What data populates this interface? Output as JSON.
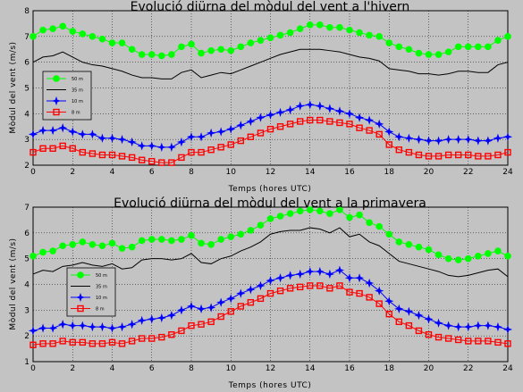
{
  "chart_data": [
    {
      "type": "line",
      "title": "Evolució diürna del mòdul del vent a l'hivern",
      "xlabel": "Temps (hores UTC)",
      "ylabel": "Mòdul del vent (m/s)",
      "xlim": [
        0,
        24
      ],
      "ylim": [
        2,
        8
      ],
      "xticks": [
        0,
        2,
        4,
        6,
        8,
        10,
        12,
        14,
        16,
        18,
        20,
        22,
        24
      ],
      "yticks": [
        2,
        3,
        4,
        5,
        6,
        7,
        8
      ],
      "grid": true,
      "legend": "left",
      "x": [
        0,
        0.5,
        1,
        1.5,
        2,
        2.5,
        3,
        3.5,
        4,
        4.5,
        5,
        5.5,
        6,
        6.5,
        7,
        7.5,
        8,
        8.5,
        9,
        9.5,
        10,
        10.5,
        11,
        11.5,
        12,
        12.5,
        13,
        13.5,
        14,
        14.5,
        15,
        15.5,
        16,
        16.5,
        17,
        17.5,
        18,
        18.5,
        19,
        19.5,
        20,
        20.5,
        21,
        21.5,
        22,
        22.5,
        23,
        23.5,
        24
      ],
      "series": [
        {
          "name": "50 m",
          "color": "#00ff00",
          "marker": "circle",
          "values": [
            7.0,
            7.25,
            7.3,
            7.4,
            7.2,
            7.1,
            7.0,
            6.9,
            6.75,
            6.75,
            6.5,
            6.3,
            6.3,
            6.25,
            6.3,
            6.6,
            6.7,
            6.35,
            6.45,
            6.5,
            6.45,
            6.6,
            6.75,
            6.85,
            6.95,
            7.05,
            7.15,
            7.3,
            7.45,
            7.45,
            7.35,
            7.35,
            7.25,
            7.15,
            7.05,
            7.0,
            6.75,
            6.6,
            6.5,
            6.35,
            6.3,
            6.3,
            6.4,
            6.6,
            6.6,
            6.6,
            6.6,
            6.85,
            7.0
          ]
        },
        {
          "name": "35 m",
          "color": "#000000",
          "marker": "none",
          "values": [
            6.0,
            6.2,
            6.25,
            6.4,
            6.2,
            6.0,
            5.9,
            5.85,
            5.75,
            5.65,
            5.5,
            5.4,
            5.4,
            5.35,
            5.35,
            5.6,
            5.7,
            5.4,
            5.5,
            5.6,
            5.55,
            5.7,
            5.85,
            6.0,
            6.15,
            6.3,
            6.4,
            6.5,
            6.5,
            6.5,
            6.45,
            6.4,
            6.3,
            6.2,
            6.15,
            6.05,
            5.75,
            5.7,
            5.65,
            5.55,
            5.55,
            5.5,
            5.55,
            5.65,
            5.65,
            5.6,
            5.6,
            5.9,
            6.0
          ]
        },
        {
          "name": "10 m",
          "color": "#0000ff",
          "marker": "star",
          "values": [
            3.2,
            3.35,
            3.35,
            3.45,
            3.3,
            3.2,
            3.2,
            3.05,
            3.05,
            3.0,
            2.9,
            2.75,
            2.75,
            2.7,
            2.7,
            2.9,
            3.1,
            3.1,
            3.25,
            3.3,
            3.4,
            3.55,
            3.7,
            3.85,
            3.95,
            4.05,
            4.15,
            4.3,
            4.35,
            4.3,
            4.2,
            4.1,
            4.0,
            3.85,
            3.75,
            3.6,
            3.3,
            3.1,
            3.05,
            3.0,
            2.95,
            2.95,
            3.0,
            3.0,
            3.0,
            2.95,
            2.95,
            3.05,
            3.1
          ]
        },
        {
          "name": "8 m",
          "color": "#ff0000",
          "marker": "square",
          "values": [
            2.5,
            2.65,
            2.65,
            2.75,
            2.65,
            2.5,
            2.45,
            2.4,
            2.4,
            2.35,
            2.3,
            2.2,
            2.15,
            2.1,
            2.1,
            2.3,
            2.5,
            2.5,
            2.6,
            2.7,
            2.8,
            2.95,
            3.1,
            3.25,
            3.4,
            3.5,
            3.6,
            3.7,
            3.75,
            3.75,
            3.7,
            3.65,
            3.6,
            3.45,
            3.35,
            3.2,
            2.8,
            2.6,
            2.5,
            2.4,
            2.35,
            2.35,
            2.4,
            2.4,
            2.4,
            2.35,
            2.35,
            2.4,
            2.5
          ]
        }
      ]
    },
    {
      "type": "line",
      "title": "Evolució diürna del mòdul del vent a la primavera",
      "xlabel": "Temps (hores UTC)",
      "ylabel": "Mòdul del vent (m/s)",
      "xlim": [
        0,
        24
      ],
      "ylim": [
        1,
        7
      ],
      "xticks": [
        0,
        2,
        4,
        6,
        8,
        10,
        12,
        14,
        16,
        18,
        20,
        22,
        24
      ],
      "yticks": [
        1,
        2,
        3,
        4,
        5,
        6,
        7
      ],
      "grid": true,
      "legend": "left",
      "x": [
        0,
        0.5,
        1,
        1.5,
        2,
        2.5,
        3,
        3.5,
        4,
        4.5,
        5,
        5.5,
        6,
        6.5,
        7,
        7.5,
        8,
        8.5,
        9,
        9.5,
        10,
        10.5,
        11,
        11.5,
        12,
        12.5,
        13,
        13.5,
        14,
        14.5,
        15,
        15.5,
        16,
        16.5,
        17,
        17.5,
        18,
        18.5,
        19,
        19.5,
        20,
        20.5,
        21,
        21.5,
        22,
        22.5,
        23,
        23.5,
        24
      ],
      "series": [
        {
          "name": "50 m",
          "color": "#00ff00",
          "marker": "circle",
          "values": [
            5.1,
            5.25,
            5.3,
            5.5,
            5.55,
            5.65,
            5.55,
            5.5,
            5.6,
            5.4,
            5.45,
            5.7,
            5.75,
            5.75,
            5.7,
            5.75,
            5.9,
            5.6,
            5.55,
            5.75,
            5.85,
            5.95,
            6.1,
            6.3,
            6.55,
            6.65,
            6.75,
            6.85,
            6.9,
            6.85,
            6.75,
            6.9,
            6.6,
            6.7,
            6.4,
            6.25,
            5.95,
            5.65,
            5.55,
            5.45,
            5.35,
            5.15,
            5.0,
            4.95,
            5.0,
            5.1,
            5.2,
            5.3,
            5.1
          ]
        },
        {
          "name": "35 m",
          "color": "#000000",
          "marker": "none",
          "values": [
            4.4,
            4.55,
            4.5,
            4.7,
            4.75,
            4.85,
            4.75,
            4.7,
            4.8,
            4.6,
            4.65,
            4.95,
            5.0,
            5.0,
            4.95,
            5.0,
            5.2,
            4.85,
            4.8,
            5.0,
            5.1,
            5.3,
            5.45,
            5.65,
            5.95,
            6.05,
            6.1,
            6.1,
            6.2,
            6.15,
            6.0,
            6.2,
            5.85,
            5.95,
            5.65,
            5.5,
            5.2,
            4.9,
            4.8,
            4.7,
            4.6,
            4.5,
            4.35,
            4.3,
            4.35,
            4.45,
            4.55,
            4.6,
            4.3
          ]
        },
        {
          "name": "10 m",
          "color": "#0000ff",
          "marker": "star",
          "values": [
            2.2,
            2.3,
            2.3,
            2.45,
            2.4,
            2.4,
            2.35,
            2.35,
            2.3,
            2.35,
            2.45,
            2.6,
            2.65,
            2.7,
            2.8,
            3.0,
            3.15,
            3.05,
            3.1,
            3.3,
            3.45,
            3.65,
            3.8,
            3.95,
            4.15,
            4.25,
            4.35,
            4.4,
            4.5,
            4.5,
            4.4,
            4.55,
            4.25,
            4.25,
            4.05,
            3.75,
            3.35,
            3.05,
            2.95,
            2.8,
            2.65,
            2.5,
            2.4,
            2.35,
            2.35,
            2.4,
            2.4,
            2.35,
            2.25
          ]
        },
        {
          "name": "8 m",
          "color": "#ff0000",
          "marker": "square",
          "values": [
            1.65,
            1.7,
            1.7,
            1.8,
            1.75,
            1.75,
            1.7,
            1.7,
            1.75,
            1.7,
            1.8,
            1.9,
            1.9,
            1.95,
            2.05,
            2.2,
            2.4,
            2.45,
            2.55,
            2.75,
            2.95,
            3.15,
            3.3,
            3.45,
            3.65,
            3.75,
            3.85,
            3.9,
            3.95,
            3.95,
            3.85,
            3.95,
            3.7,
            3.65,
            3.5,
            3.25,
            2.85,
            2.55,
            2.4,
            2.2,
            2.05,
            1.95,
            1.9,
            1.85,
            1.8,
            1.8,
            1.8,
            1.75,
            1.7
          ]
        }
      ]
    }
  ]
}
